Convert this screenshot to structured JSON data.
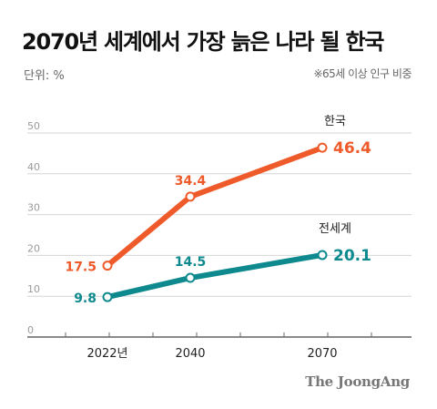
{
  "header": {
    "title": "2070년 세계에서 가장 늙은 나라 될 한국",
    "unit": "단위: %",
    "note": "※65세 이상 인구 비중"
  },
  "brand": "The JoongAng",
  "chart_data": {
    "type": "line",
    "title": "2070년 세계에서 가장 늙은 나라 될 한국",
    "ylabel": "단위: %",
    "categories": [
      "2022년",
      "2040",
      "2070"
    ],
    "x": [
      2022,
      2040,
      2070
    ],
    "xlim": [
      2022,
      2070
    ],
    "ylim": [
      0,
      50
    ],
    "yticks": [
      "0",
      "10",
      "20",
      "30",
      "40",
      "50"
    ],
    "grid": true,
    "series": [
      {
        "name": "한국",
        "color": "#ef5a2a",
        "values": [
          17.5,
          34.4,
          46.4
        ],
        "labels": [
          "17.5",
          "34.4",
          "46.4"
        ]
      },
      {
        "name": "전세계",
        "color": "#0e8a8f",
        "values": [
          9.8,
          14.5,
          20.1
        ],
        "labels": [
          "9.8",
          "14.5",
          "20.1"
        ]
      }
    ]
  }
}
